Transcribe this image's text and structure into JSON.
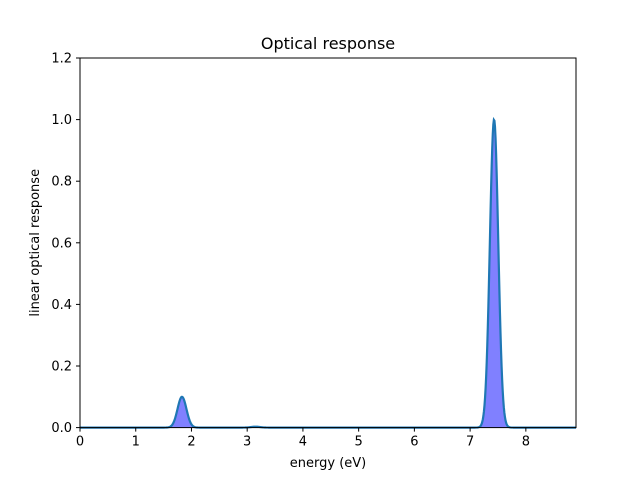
{
  "chart_data": {
    "type": "area",
    "title": "Optical response",
    "xlabel": "energy (eV)",
    "ylabel": "linear optical response",
    "xlim": [
      0,
      8.9
    ],
    "ylim": [
      0,
      1.2
    ],
    "xticks": [
      "0",
      "1",
      "2",
      "3",
      "4",
      "5",
      "6",
      "7",
      "8"
    ],
    "yticks": [
      "0.0",
      "0.2",
      "0.4",
      "0.6",
      "0.8",
      "1.0",
      "1.2"
    ],
    "grid": false,
    "legend": "none",
    "line_color": "#1f77b4",
    "fill_color": "#8080ff",
    "peaks": [
      {
        "center": 1.83,
        "height": 0.1,
        "width": 0.08
      },
      {
        "center": 3.15,
        "height": 0.003,
        "width": 0.08
      },
      {
        "center": 7.43,
        "height": 1.0,
        "width": 0.075
      }
    ],
    "x_range_plotted": [
      0,
      8.9
    ]
  }
}
